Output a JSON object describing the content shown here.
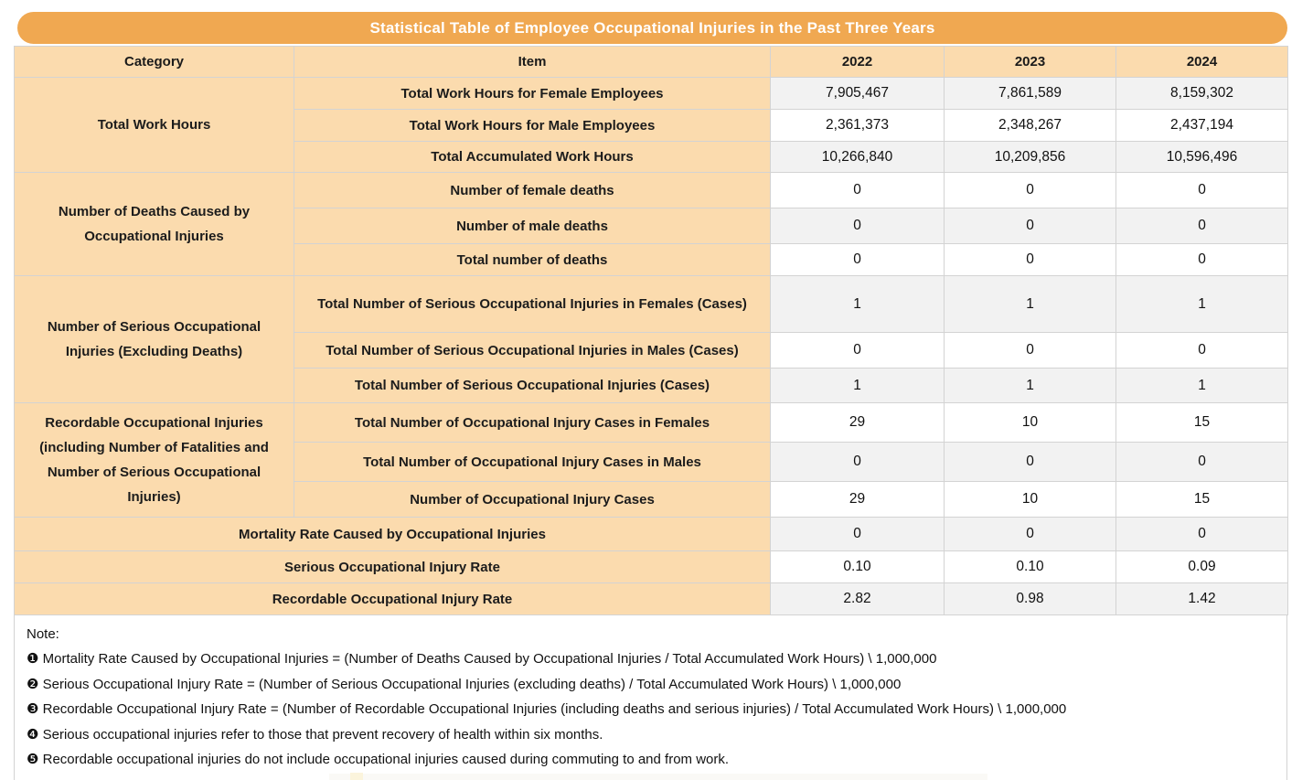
{
  "title": "Statistical Table of Employee Occupational Injuries in the Past Three Years",
  "colors": {
    "banner_orange": "#F0A851",
    "cell_peach": "#FBDBAE",
    "row_gray": "#F2F2F2",
    "row_white": "#FFFFFF",
    "border_gray": "#D3D3D3",
    "title_text": "#FFFFFF",
    "body_text": "#1A1A1A"
  },
  "chart_data": {
    "type": "table",
    "title": "Statistical Table of Employee Occupational Injuries in the Past Three Years",
    "columns": [
      "Category",
      "Item",
      "2022",
      "2023",
      "2024"
    ],
    "groups": [
      {
        "category": "Total Work Hours",
        "rows": [
          {
            "item": "Total Work Hours for Female Employees",
            "values": [
              "7,905,467",
              "7,861,589",
              "8,159,302"
            ]
          },
          {
            "item": "Total Work Hours for Male Employees",
            "values": [
              "2,361,373",
              "2,348,267",
              "2,437,194"
            ]
          },
          {
            "item": "Total Accumulated Work Hours",
            "values": [
              "10,266,840",
              "10,209,856",
              "10,596,496"
            ]
          }
        ]
      },
      {
        "category": "Number of Deaths Caused by Occupational Injuries",
        "rows": [
          {
            "item": "Number of female deaths",
            "values": [
              "0",
              "0",
              "0"
            ]
          },
          {
            "item": "Number of male deaths",
            "values": [
              "0",
              "0",
              "0"
            ]
          },
          {
            "item": "Total number of deaths",
            "values": [
              "0",
              "0",
              "0"
            ]
          }
        ]
      },
      {
        "category": "Number of Serious Occupational Injuries (Excluding Deaths)",
        "rows": [
          {
            "item": "Total Number of Serious Occupational Injuries in Females (Cases)",
            "values": [
              "1",
              "1",
              "1"
            ]
          },
          {
            "item": "Total Number of Serious Occupational Injuries in Males (Cases)",
            "values": [
              "0",
              "0",
              "0"
            ]
          },
          {
            "item": "Total Number of Serious Occupational Injuries (Cases)",
            "values": [
              "1",
              "1",
              "1"
            ]
          }
        ]
      },
      {
        "category": "Recordable Occupational Injuries (including Number of Fatalities and Number of Serious Occupational Injuries)",
        "rows": [
          {
            "item": "Total Number of Occupational Injury Cases in Females",
            "values": [
              "29",
              "10",
              "15"
            ]
          },
          {
            "item": "Total Number of Occupational Injury Cases in Males",
            "values": [
              "0",
              "0",
              "0"
            ]
          },
          {
            "item": "Number of Occupational Injury Cases",
            "values": [
              "29",
              "10",
              "15"
            ]
          }
        ]
      }
    ],
    "summary_rows": [
      {
        "label": "Mortality Rate Caused by Occupational Injuries",
        "values": [
          "0",
          "0",
          "0"
        ]
      },
      {
        "label": "Serious Occupational Injury Rate",
        "values": [
          "0.10",
          "0.10",
          "0.09"
        ]
      },
      {
        "label": "Recordable Occupational Injury Rate",
        "values": [
          "2.82",
          "0.98",
          "1.42"
        ]
      }
    ]
  },
  "notes": {
    "label": "Note:",
    "items": [
      "❶ Mortality Rate Caused by Occupational Injuries = (Number of Deaths Caused by Occupational Injuries / Total Accumulated Work Hours) \\ 1,000,000",
      "❷ Serious Occupational Injury Rate = (Number of Serious Occupational Injuries (excluding deaths) / Total Accumulated Work Hours) \\ 1,000,000",
      "❸ Recordable Occupational Injury Rate = (Number of Recordable Occupational Injuries (including deaths and serious injuries) / Total Accumulated Work Hours) \\ 1,000,000",
      "❹ Serious occupational injuries refer to those that prevent recovery of health within six months.",
      "❺  Recordable occupational injuries do not include occupational injuries caused during commuting to and from work."
    ]
  }
}
